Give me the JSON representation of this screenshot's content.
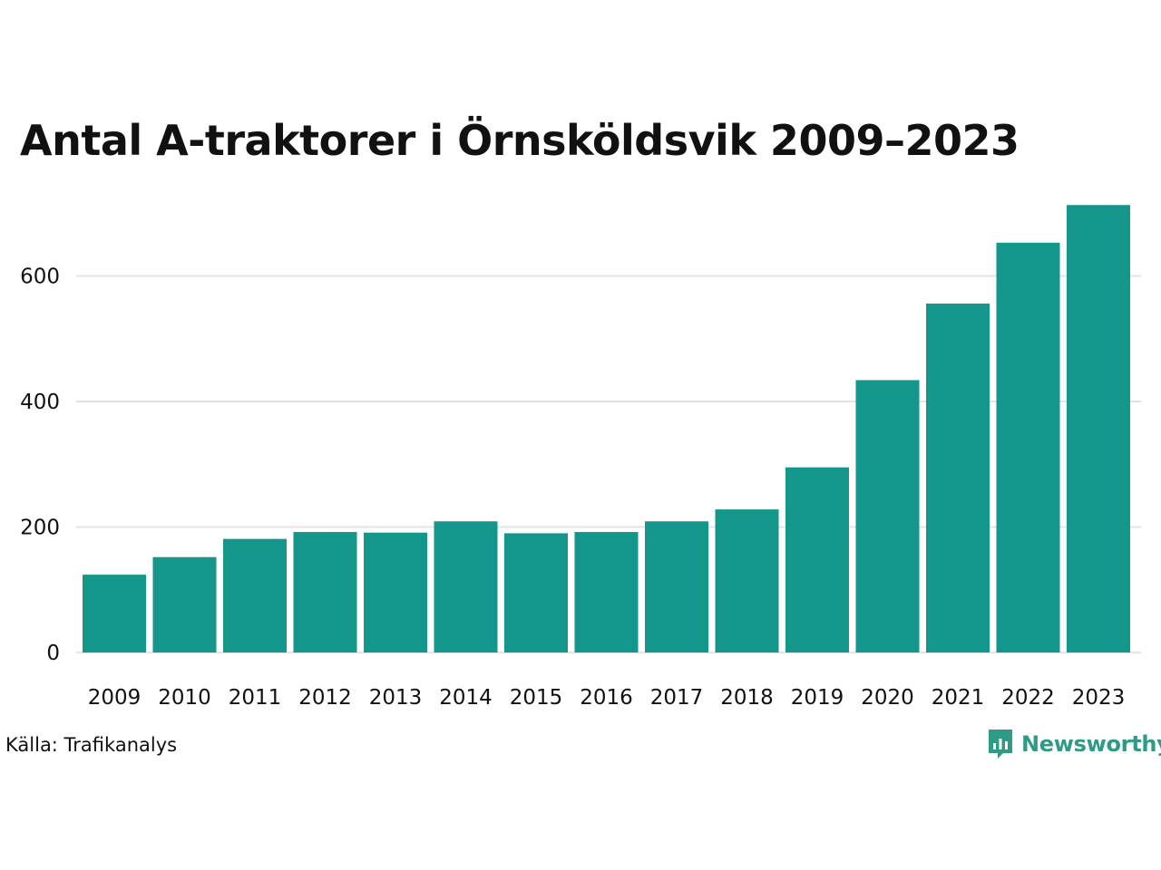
{
  "chart_data": {
    "type": "bar",
    "title": "Antal A-traktorer i Örnsköldsvik 2009–2023",
    "xlabel": "",
    "ylabel": "",
    "categories": [
      "2009",
      "2010",
      "2011",
      "2012",
      "2013",
      "2014",
      "2015",
      "2016",
      "2017",
      "2018",
      "2019",
      "2020",
      "2021",
      "2022",
      "2023"
    ],
    "values": [
      124,
      152,
      181,
      192,
      191,
      209,
      190,
      192,
      209,
      228,
      295,
      434,
      556,
      653,
      713
    ],
    "ylim": [
      0,
      730
    ],
    "yticks": [
      0,
      200,
      400,
      600
    ],
    "grid": "horizontal",
    "bar_color": "#15968a",
    "grid_color": "#e3e3e3"
  },
  "footer": {
    "source": "Källa: Trafikanalys",
    "brand": "Newsworthy",
    "brand_icon": "newsworthy-logo-icon",
    "brand_color": "#2f9a86"
  }
}
